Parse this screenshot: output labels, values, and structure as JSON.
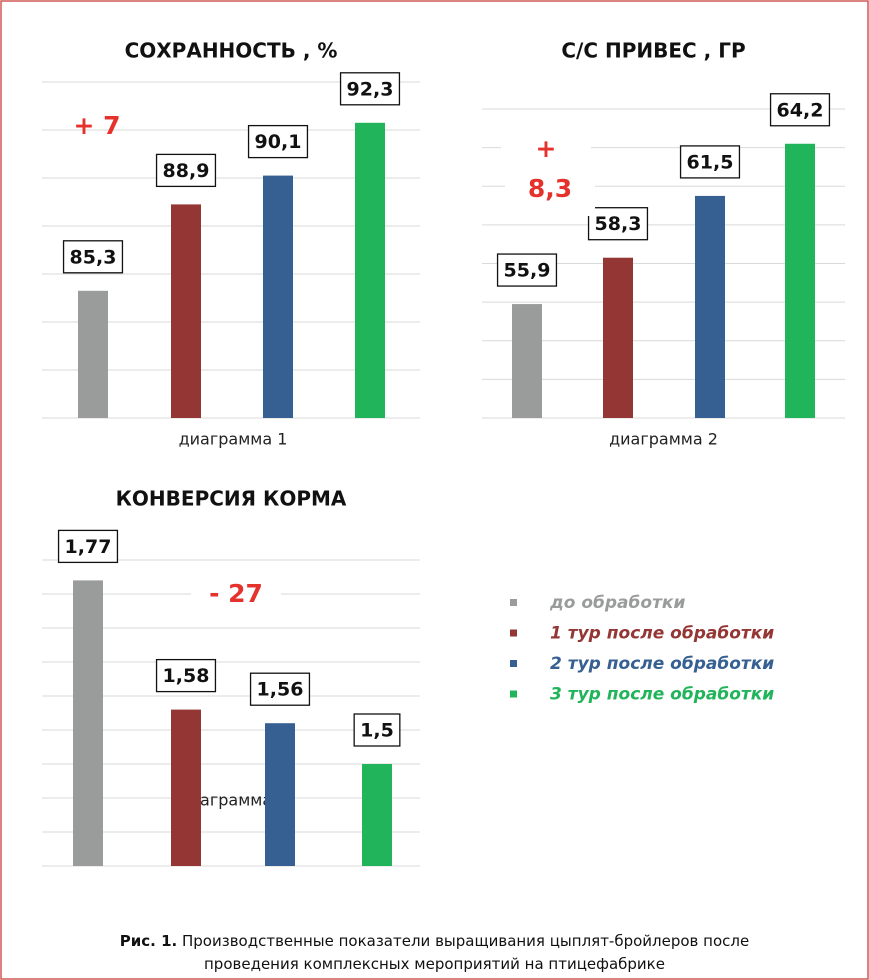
{
  "chart_data": [
    {
      "type": "bar",
      "title": "СОХРАННОСТЬ , %",
      "xlabel": "диаграмма 1",
      "values": [
        85.3,
        88.9,
        90.1,
        92.3
      ],
      "value_labels": [
        "85,3",
        "88,9",
        "90,1",
        "92,3"
      ],
      "annotation": [
        "+ 7"
      ],
      "ylim": [
        80,
        94
      ],
      "yticks": [
        80,
        82,
        84,
        86,
        88,
        90,
        92,
        94
      ],
      "grid": true
    },
    {
      "type": "bar",
      "title": "С/С ПРИВЕС , ГР",
      "xlabel": "диаграмма 2",
      "values": [
        55.9,
        58.3,
        61.5,
        64.2
      ],
      "value_labels": [
        "55,9",
        "58,3",
        "61,5",
        "64,2"
      ],
      "annotation": [
        "+",
        "8,3"
      ],
      "ylim": [
        50,
        66
      ],
      "yticks": [
        50,
        52,
        54,
        56,
        58,
        60,
        62,
        64,
        66
      ],
      "grid": true
    },
    {
      "type": "bar",
      "title": "КОНВЕРСИЯ КОРМА",
      "xlabel": "диаграмма 3",
      "values": [
        1.77,
        1.58,
        1.56,
        1.5
      ],
      "value_labels": [
        "1,77",
        "1,58",
        "1,56",
        "1,5"
      ],
      "annotation": [
        "- 27"
      ],
      "ylim": [
        1.35,
        1.8
      ],
      "yticks": [
        1.35,
        1.4,
        1.45,
        1.5,
        1.55,
        1.6,
        1.65,
        1.7,
        1.75,
        1.8
      ],
      "grid": true
    }
  ],
  "legend": {
    "items": [
      {
        "name": "до обработки",
        "color": "#9a9c9c"
      },
      {
        "name": "1 тур после обработки",
        "color": "#943634"
      },
      {
        "name": "2 тур после обработки",
        "color": "#376092"
      },
      {
        "name": "3 тур после обработки",
        "color": "#22b45a"
      }
    ]
  },
  "caption": {
    "label": "Рис. 1.",
    "text": [
      "Производственные показатели выращивания цыплят-бройлеров после",
      "проведения комплексных мероприятий на птицефабрике"
    ]
  }
}
